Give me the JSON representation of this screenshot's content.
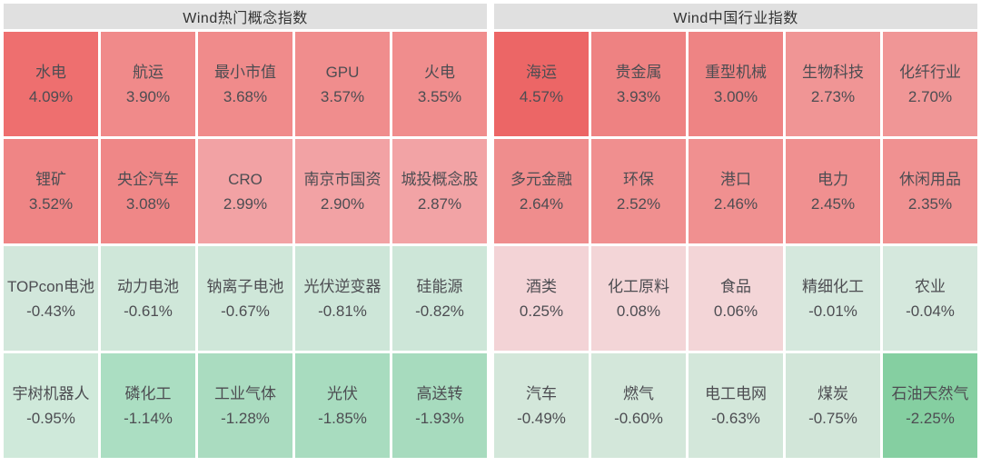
{
  "chart_data": {
    "type": "heatmap",
    "layout": {
      "panels_side_by_side": 2,
      "rows_per_panel": 4,
      "cols_per_panel": 5,
      "sorted": "descending by change within panel"
    },
    "color_scale": {
      "positive": "red shades (darker = larger gain)",
      "negative": "green shades (darker = larger loss)",
      "header_bg": "#e0e0e0",
      "text": "#4d4d52"
    },
    "panels": [
      {
        "title": "Wind热门概念指数",
        "cells": [
          {
            "name": "水电",
            "value": 4.09,
            "change": "4.09%",
            "color": "#ee6f6f"
          },
          {
            "name": "航运",
            "value": 3.9,
            "change": "3.90%",
            "color": "#f08a8a"
          },
          {
            "name": "最小市值",
            "value": 3.68,
            "change": "3.68%",
            "color": "#f08b8b"
          },
          {
            "name": "GPU",
            "value": 3.57,
            "change": "3.57%",
            "color": "#f08d8d"
          },
          {
            "name": "火电",
            "value": 3.55,
            "change": "3.55%",
            "color": "#f08d8d"
          },
          {
            "name": "锂矿",
            "value": 3.52,
            "change": "3.52%",
            "color": "#ef8585"
          },
          {
            "name": "央企汽车",
            "value": 3.08,
            "change": "3.08%",
            "color": "#ef8787"
          },
          {
            "name": "CRO",
            "value": 2.99,
            "change": "2.99%",
            "color": "#f2a2a4"
          },
          {
            "name": "南京市国资",
            "value": 2.9,
            "change": "2.90%",
            "color": "#f2a2a4"
          },
          {
            "name": "城投概念股",
            "value": 2.87,
            "change": "2.87%",
            "color": "#f2a3a5"
          },
          {
            "name": "TOPcon电池",
            "value": -0.43,
            "change": "-0.43%",
            "color": "#d2e7db"
          },
          {
            "name": "动力电池",
            "value": -0.61,
            "change": "-0.61%",
            "color": "#cfe7d9"
          },
          {
            "name": "钠离子电池",
            "value": -0.67,
            "change": "-0.67%",
            "color": "#cfe7d9"
          },
          {
            "name": "光伏逆变器",
            "value": -0.81,
            "change": "-0.81%",
            "color": "#cde6d8"
          },
          {
            "name": "硅能源",
            "value": -0.82,
            "change": "-0.82%",
            "color": "#cde6d8"
          },
          {
            "name": "宇树机器人",
            "value": -0.95,
            "change": "-0.95%",
            "color": "#cfe9da"
          },
          {
            "name": "磷化工",
            "value": -1.14,
            "change": "-1.14%",
            "color": "#abdec2"
          },
          {
            "name": "工业气体",
            "value": -1.28,
            "change": "-1.28%",
            "color": "#aadcc0"
          },
          {
            "name": "光伏",
            "value": -1.85,
            "change": "-1.85%",
            "color": "#a8dcbf"
          },
          {
            "name": "高送转",
            "value": -1.93,
            "change": "-1.93%",
            "color": "#a7dbbe"
          }
        ]
      },
      {
        "title": "Wind中国行业指数",
        "cells": [
          {
            "name": "海运",
            "value": 4.57,
            "change": "4.57%",
            "color": "#ec6666"
          },
          {
            "name": "贵金属",
            "value": 3.93,
            "change": "3.93%",
            "color": "#ee8282"
          },
          {
            "name": "重型机械",
            "value": 3.0,
            "change": "3.00%",
            "color": "#ee8484"
          },
          {
            "name": "生物科技",
            "value": 2.73,
            "change": "2.73%",
            "color": "#f09595"
          },
          {
            "name": "化纤行业",
            "value": 2.7,
            "change": "2.70%",
            "color": "#f09696"
          },
          {
            "name": "多元金融",
            "value": 2.64,
            "change": "2.64%",
            "color": "#ef8d8d"
          },
          {
            "name": "环保",
            "value": 2.52,
            "change": "2.52%",
            "color": "#f08f8f"
          },
          {
            "name": "港口",
            "value": 2.46,
            "change": "2.46%",
            "color": "#f09090"
          },
          {
            "name": "电力",
            "value": 2.45,
            "change": "2.45%",
            "color": "#f09090"
          },
          {
            "name": "休闲用品",
            "value": 2.35,
            "change": "2.35%",
            "color": "#f09191"
          },
          {
            "name": "酒类",
            "value": 0.25,
            "change": "0.25%",
            "color": "#f3d3d6"
          },
          {
            "name": "化工原料",
            "value": 0.08,
            "change": "0.08%",
            "color": "#f3d5d7"
          },
          {
            "name": "食品",
            "value": 0.06,
            "change": "0.06%",
            "color": "#f3d5d7"
          },
          {
            "name": "精细化工",
            "value": -0.01,
            "change": "-0.01%",
            "color": "#d5e8dd"
          },
          {
            "name": "农业",
            "value": -0.04,
            "change": "-0.04%",
            "color": "#d5e8dd"
          },
          {
            "name": "汽车",
            "value": -0.49,
            "change": "-0.49%",
            "color": "#d3e7da"
          },
          {
            "name": "燃气",
            "value": -0.6,
            "change": "-0.60%",
            "color": "#d3e7da"
          },
          {
            "name": "电工电网",
            "value": -0.63,
            "change": "-0.63%",
            "color": "#d3e7da"
          },
          {
            "name": "煤炭",
            "value": -0.75,
            "change": "-0.75%",
            "color": "#d2e6d9"
          },
          {
            "name": "石油天然气",
            "value": -2.25,
            "change": "-2.25%",
            "color": "#85cfa1"
          }
        ]
      }
    ]
  }
}
